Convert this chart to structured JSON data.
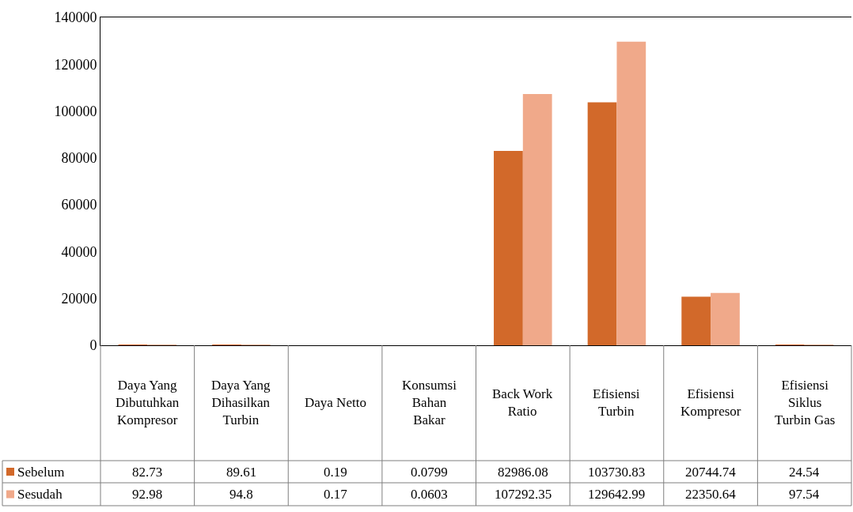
{
  "chart_data": {
    "type": "bar",
    "categories": [
      "Daya Yang Dibutuhkan Kompresor",
      "Daya Yang Dihasilkan Turbin",
      "Daya Netto",
      "Konsumsi Bahan Bakar",
      "Back Work Ratio",
      "Efisiensi Turbin",
      "Efisiensi Kompresor",
      "Efisiensi Siklus Turbin Gas"
    ],
    "series": [
      {
        "name": "Sebelum",
        "color": "#d2692a",
        "values": [
          82.73,
          89.61,
          0.19,
          0.0799,
          82986.08,
          103730.83,
          20744.74,
          24.54
        ]
      },
      {
        "name": "Sesudah",
        "color": "#f0a98a",
        "values": [
          92.98,
          94.8,
          0.17,
          0.0603,
          107292.35,
          129642.99,
          22350.64,
          97.54
        ]
      }
    ],
    "ylim": [
      0,
      140000
    ],
    "yticks": [
      0,
      20000,
      40000,
      60000,
      80000,
      100000,
      120000,
      140000
    ],
    "data_labels": true,
    "legend": "bottom left"
  }
}
